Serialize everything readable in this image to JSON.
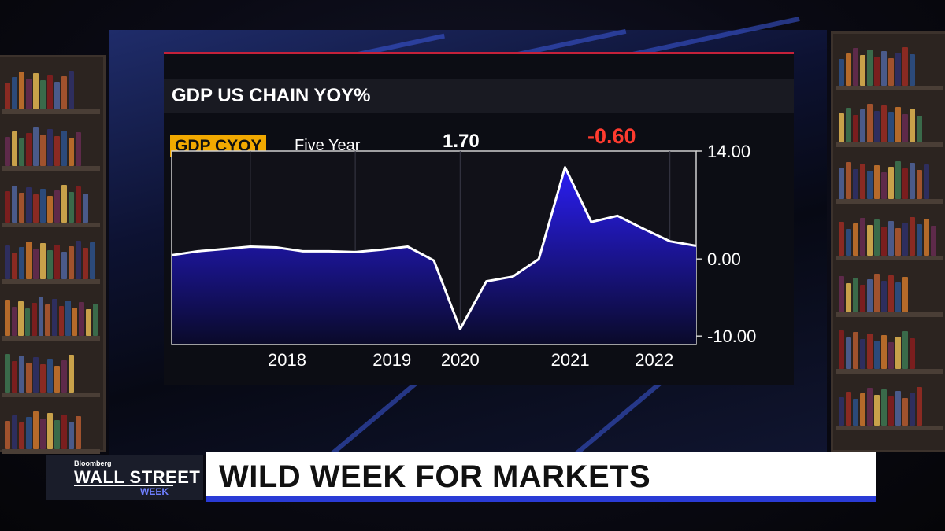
{
  "panel": {
    "title": "GDP US CHAIN YOY%",
    "ticker": "GDP CYOY",
    "range": "Five Year",
    "last_value": "1.70",
    "change_value": "-0.60",
    "colors": {
      "accent": "#c4213a",
      "ticker_bg": "#f2a900",
      "change": "#ff3b2f",
      "area_top": "#2b1ef5",
      "area_bottom": "#0a0a2a"
    }
  },
  "chart_data": {
    "type": "area",
    "title": "GDP US CHAIN YOY%",
    "xlabel": "",
    "ylabel": "",
    "x_ticks": [
      "2018",
      "2019",
      "2020",
      "2021",
      "2022"
    ],
    "y_ticks": [
      "14.00",
      "0.00",
      "-10.00"
    ],
    "ylim": [
      -11,
      14
    ],
    "xlim": [
      2017.25,
      2022.25
    ],
    "grid": true,
    "series": [
      {
        "x": [
          2017.25,
          2017.5,
          2017.75,
          2018.0,
          2018.25,
          2018.5,
          2018.75,
          2019.0,
          2019.25,
          2019.5,
          2019.75,
          2020.0,
          2020.25,
          2020.5,
          2020.75,
          2021.0,
          2021.25,
          2021.5,
          2021.75,
          2022.0,
          2022.25
        ],
        "y": [
          0.5,
          1.0,
          1.3,
          1.6,
          1.5,
          1.0,
          1.0,
          0.9,
          1.2,
          1.6,
          -0.2,
          -9.1,
          -2.9,
          -2.3,
          0.0,
          11.9,
          4.8,
          5.6,
          3.9,
          2.3,
          1.7
        ]
      }
    ]
  },
  "lower_third": {
    "headline": "WILD WEEK FOR MARKETS"
  },
  "show": {
    "brand": "Bloomberg",
    "name": "WALL STREET",
    "sub": "WEEK"
  }
}
